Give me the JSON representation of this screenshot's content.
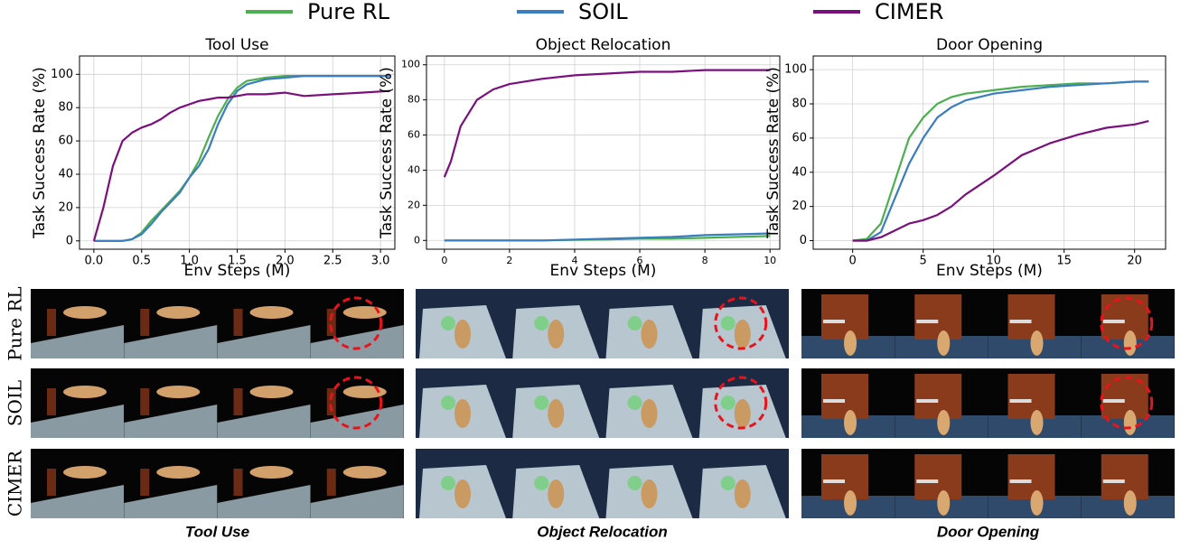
{
  "chart_data": [
    {
      "type": "line",
      "title": "Tool Use",
      "xlabel": "Env Steps (M)",
      "ylabel": "Task Success Rate (%)",
      "x": [
        0,
        0.1,
        0.2,
        0.3,
        0.4,
        0.5,
        0.6,
        0.7,
        0.8,
        0.9,
        1.0,
        1.1,
        1.2,
        1.3,
        1.4,
        1.5,
        1.6,
        1.8,
        2.0,
        2.2,
        2.5,
        2.8,
        3.1
      ],
      "series": [
        {
          "name": "Pure RL",
          "color": "#4caf50",
          "values": [
            0,
            0,
            0,
            0,
            1,
            5,
            12,
            18,
            24,
            30,
            38,
            48,
            62,
            75,
            85,
            92,
            96,
            98,
            99,
            99,
            99,
            99,
            99
          ]
        },
        {
          "name": "SOIL",
          "color": "#3a7dc0",
          "values": [
            0,
            0,
            0,
            0,
            1,
            4,
            10,
            17,
            23,
            29,
            38,
            45,
            55,
            70,
            82,
            90,
            94,
            97,
            98,
            99,
            99,
            99,
            99
          ]
        },
        {
          "name": "CIMER",
          "color": "#7b0f7e",
          "values": [
            0,
            20,
            45,
            60,
            65,
            68,
            70,
            73,
            77,
            80,
            82,
            84,
            85,
            86,
            86,
            87,
            88,
            88,
            89,
            87,
            88,
            89,
            90
          ]
        }
      ],
      "xlim": [
        -0.15,
        3.15
      ],
      "ylim": [
        -5,
        111
      ],
      "xticks": [
        {
          "value": 0,
          "label": "0.0"
        },
        0.5,
        {
          "value": 1,
          "label": "1.0"
        },
        1.5,
        {
          "value": 2,
          "label": "2.0"
        },
        2.5,
        {
          "value": 3,
          "label": "3.0"
        }
      ],
      "yticks": [
        0,
        20,
        40,
        60,
        80,
        100
      ],
      "grid": true
    },
    {
      "type": "line",
      "title": "Object Relocation",
      "xlabel": "Env Steps (M)",
      "ylabel": "Task Success Rate (%)",
      "x": [
        0,
        0.2,
        0.5,
        1,
        1.5,
        2,
        3,
        4,
        5,
        6,
        7,
        8,
        9,
        10
      ],
      "series": [
        {
          "name": "Pure RL",
          "color": "#4caf50",
          "values": [
            0,
            0,
            0,
            0,
            0,
            0,
            0,
            0.3,
            0.5,
            1,
            1,
            1.5,
            2,
            2.5
          ]
        },
        {
          "name": "SOIL",
          "color": "#3a7dc0",
          "values": [
            0,
            0,
            0,
            0,
            0,
            0,
            0,
            0.5,
            1,
            1.5,
            2,
            3,
            3.5,
            4
          ]
        },
        {
          "name": "CIMER",
          "color": "#7b0f7e",
          "values": [
            36,
            45,
            65,
            80,
            86,
            89,
            92,
            94,
            95,
            96,
            96,
            97,
            97,
            97
          ]
        }
      ],
      "xlim": [
        -0.55,
        10.3
      ],
      "ylim": [
        -5,
        105
      ],
      "xticks": [
        0,
        2,
        4,
        6,
        8,
        10
      ],
      "yticks": [
        0,
        20,
        40,
        60,
        80,
        100
      ],
      "grid": true
    },
    {
      "type": "line",
      "title": "Door Opening",
      "xlabel": "Env Steps (M)",
      "ylabel": "Task Success Rate (%)",
      "x": [
        0,
        1,
        2,
        3,
        4,
        5,
        6,
        7,
        8,
        10,
        12,
        14,
        16,
        18,
        20,
        21
      ],
      "series": [
        {
          "name": "Pure RL",
          "color": "#4caf50",
          "values": [
            0,
            1,
            10,
            35,
            60,
            72,
            80,
            84,
            86,
            88,
            90,
            91,
            92,
            92,
            93,
            93
          ]
        },
        {
          "name": "SOIL",
          "color": "#3a7dc0",
          "values": [
            0,
            0,
            5,
            25,
            45,
            60,
            72,
            78,
            82,
            86,
            88,
            90,
            91,
            92,
            93,
            93
          ]
        },
        {
          "name": "CIMER",
          "color": "#7b0f7e",
          "values": [
            0,
            0,
            2,
            6,
            10,
            12,
            15,
            20,
            27,
            38,
            50,
            57,
            62,
            66,
            68,
            70
          ]
        }
      ],
      "xlim": [
        -2.8,
        22.2
      ],
      "ylim": [
        -5,
        108
      ],
      "xticks": [
        0,
        5,
        10,
        15,
        20
      ],
      "yticks": [
        0,
        20,
        40,
        60,
        80,
        100
      ],
      "grid": true
    }
  ],
  "image_grid": {
    "row_labels": [
      "Pure RL",
      "SOIL",
      "CIMER"
    ],
    "captions": [
      "Tool Use",
      "Object Relocation",
      "Door Opening"
    ]
  }
}
